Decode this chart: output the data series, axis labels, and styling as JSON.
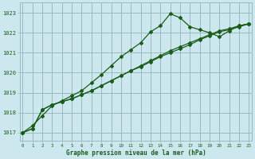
{
  "title": "Graphe pression niveau de la mer (hPa)",
  "bg_color": "#cce8ee",
  "grid_color": "#99bbbb",
  "line_color": "#1a5c1a",
  "x_ticks": [
    0,
    1,
    2,
    3,
    4,
    5,
    6,
    7,
    8,
    9,
    10,
    11,
    12,
    13,
    14,
    15,
    16,
    17,
    18,
    19,
    20,
    21,
    22,
    23
  ],
  "y_ticks": [
    1017,
    1018,
    1019,
    1020,
    1021,
    1022,
    1023
  ],
  "ylim": [
    1016.6,
    1023.5
  ],
  "xlim": [
    -0.3,
    23.3
  ],
  "series1": [
    1017.0,
    1017.35,
    1017.85,
    1018.35,
    1018.6,
    1018.85,
    1019.1,
    1019.5,
    1019.9,
    1020.35,
    1020.8,
    1021.15,
    1021.5,
    1022.05,
    1022.35,
    1022.95,
    1022.75,
    1022.3,
    1022.15,
    1022.0,
    1021.8,
    1022.1,
    1022.35,
    1022.45
  ],
  "series2": [
    1017.0,
    1017.2,
    1018.15,
    1018.4,
    1018.55,
    1018.7,
    1018.9,
    1019.1,
    1019.35,
    1019.6,
    1019.85,
    1020.1,
    1020.35,
    1020.6,
    1020.85,
    1021.1,
    1021.3,
    1021.5,
    1021.7,
    1021.9,
    1022.1,
    1022.2,
    1022.35,
    1022.45
  ],
  "series3": [
    1017.0,
    1017.2,
    1018.15,
    1018.4,
    1018.55,
    1018.7,
    1018.9,
    1019.1,
    1019.35,
    1019.6,
    1019.85,
    1020.1,
    1020.3,
    1020.55,
    1020.8,
    1021.0,
    1021.2,
    1021.4,
    1021.65,
    1021.85,
    1022.05,
    1022.15,
    1022.3,
    1022.45
  ],
  "marker": "D",
  "marker_size": 2.0,
  "line_width": 0.9
}
